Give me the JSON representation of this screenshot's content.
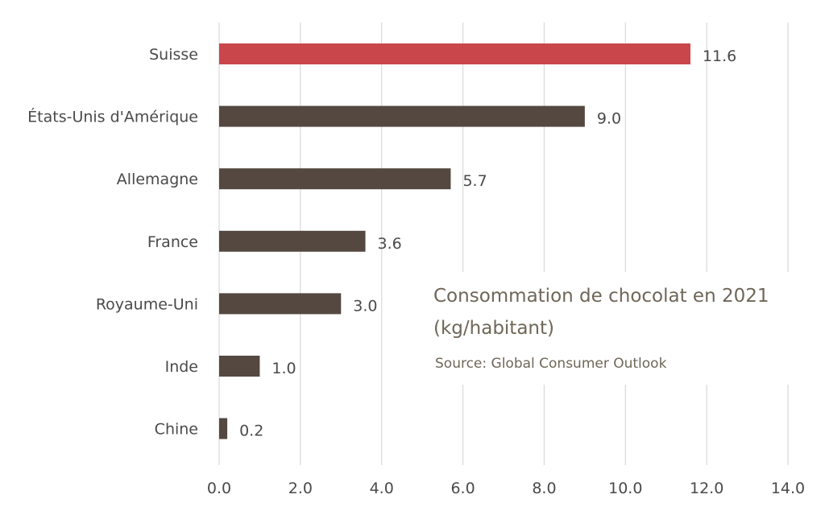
{
  "chart_data": {
    "type": "bar",
    "orientation": "horizontal",
    "title": "Consommation de chocolat en 2021",
    "subtitle": "(kg/habitant)",
    "source": "Source: Global Consumer Outlook",
    "categories": [
      "Suisse",
      "États-Unis d'Amérique",
      "Allemagne",
      "France",
      "Royaume-Uni",
      "Inde",
      "Chine"
    ],
    "values": [
      11.6,
      9.0,
      5.7,
      3.6,
      3.0,
      1.0,
      0.2
    ],
    "value_labels": [
      "11.6",
      "9.0",
      "5.7",
      "3.6",
      "3.0",
      "1.0",
      "0.2"
    ],
    "x_ticks": [
      "0.0",
      "2.0",
      "4.0",
      "6.0",
      "8.0",
      "10.0",
      "12.0",
      "14.0"
    ],
    "xlim": [
      0,
      14
    ],
    "grid": "vertical",
    "legend": "none",
    "xlabel": "",
    "ylabel": "",
    "colors": {
      "highlight": "#c9474b",
      "bar": "#544841",
      "grid": "#d9d9d9",
      "text": "#4a4a4a",
      "title": "#6f6658"
    }
  }
}
